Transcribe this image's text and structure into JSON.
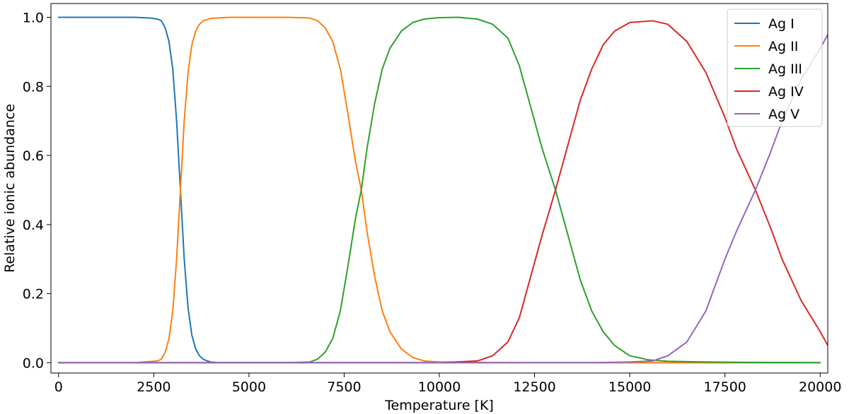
{
  "chart_data": {
    "type": "line",
    "title": "",
    "xlabel": "Temperature [K]",
    "ylabel": "Relative ionic abundance",
    "xlim": [
      -200,
      20200
    ],
    "ylim": [
      -0.03,
      1.04
    ],
    "xticks": [
      0,
      2500,
      5000,
      7500,
      10000,
      12500,
      15000,
      17500,
      20000
    ],
    "xtick_labels": [
      "0",
      "2500",
      "5000",
      "7500",
      "10000",
      "12500",
      "15000",
      "17500",
      "20000"
    ],
    "yticks": [
      0.0,
      0.2,
      0.4,
      0.6,
      0.8,
      1.0
    ],
    "ytick_labels": [
      "0.0",
      "0.2",
      "0.4",
      "0.6",
      "0.8",
      "1.0"
    ],
    "grid": false,
    "legend_position": "top-right",
    "series": [
      {
        "name": "Ag I",
        "color": "#1f77b4",
        "x": [
          0,
          1000,
          2000,
          2400,
          2600,
          2700,
          2800,
          2900,
          3000,
          3100,
          3200,
          3300,
          3400,
          3500,
          3600,
          3700,
          3800,
          3900,
          4000,
          4200,
          5000,
          10000,
          15000,
          20000
        ],
        "y": [
          1.0,
          1.0,
          1.0,
          0.998,
          0.995,
          0.99,
          0.97,
          0.93,
          0.85,
          0.7,
          0.5,
          0.3,
          0.16,
          0.08,
          0.04,
          0.02,
          0.01,
          0.005,
          0.002,
          0.0,
          0.0,
          0.0,
          0.0,
          0.0
        ]
      },
      {
        "name": "Ag II",
        "color": "#ff7f0e",
        "x": [
          0,
          2000,
          2600,
          2700,
          2800,
          2900,
          3000,
          3100,
          3200,
          3300,
          3400,
          3500,
          3600,
          3700,
          3800,
          4000,
          4500,
          5000,
          6000,
          6600,
          6800,
          7000,
          7200,
          7400,
          7600,
          7800,
          7950,
          8100,
          8300,
          8500,
          8700,
          9000,
          9300,
          9600,
          10000,
          12000,
          20000
        ],
        "y": [
          0.0,
          0.0,
          0.005,
          0.01,
          0.03,
          0.07,
          0.15,
          0.3,
          0.5,
          0.7,
          0.84,
          0.92,
          0.96,
          0.98,
          0.99,
          0.997,
          1.0,
          1.0,
          1.0,
          0.998,
          0.99,
          0.97,
          0.93,
          0.85,
          0.72,
          0.58,
          0.5,
          0.38,
          0.25,
          0.15,
          0.09,
          0.04,
          0.015,
          0.005,
          0.002,
          0.0,
          0.0
        ]
      },
      {
        "name": "Ag III",
        "color": "#2ca02c",
        "x": [
          0,
          6000,
          6600,
          6800,
          7000,
          7200,
          7400,
          7600,
          7800,
          7950,
          8100,
          8300,
          8500,
          8700,
          9000,
          9300,
          9600,
          10000,
          10500,
          11000,
          11400,
          11800,
          12100,
          12400,
          12700,
          13050,
          13400,
          13700,
          14000,
          14300,
          14600,
          15000,
          15500,
          16000,
          17000,
          18000,
          20000
        ],
        "y": [
          0.0,
          0.0,
          0.002,
          0.01,
          0.03,
          0.07,
          0.15,
          0.28,
          0.42,
          0.5,
          0.62,
          0.75,
          0.85,
          0.91,
          0.96,
          0.985,
          0.995,
          0.999,
          1.0,
          0.995,
          0.98,
          0.94,
          0.86,
          0.74,
          0.62,
          0.5,
          0.36,
          0.24,
          0.15,
          0.09,
          0.05,
          0.02,
          0.008,
          0.004,
          0.002,
          0.001,
          0.0
        ]
      },
      {
        "name": "Ag IV",
        "color": "#d62728",
        "x": [
          0,
          10000,
          11000,
          11400,
          11800,
          12100,
          12400,
          12700,
          13050,
          13400,
          13700,
          14000,
          14300,
          14600,
          15000,
          15600,
          16000,
          16500,
          17000,
          17500,
          17800,
          18300,
          18700,
          19000,
          19500,
          20000,
          20200
        ],
        "y": [
          0.0,
          0.0,
          0.005,
          0.02,
          0.06,
          0.13,
          0.25,
          0.37,
          0.5,
          0.64,
          0.76,
          0.85,
          0.92,
          0.96,
          0.985,
          0.99,
          0.98,
          0.93,
          0.84,
          0.71,
          0.62,
          0.5,
          0.39,
          0.3,
          0.18,
          0.09,
          0.05
        ]
      },
      {
        "name": "Ag V",
        "color": "#9467bd",
        "x": [
          0,
          14000,
          15000,
          15600,
          16000,
          16500,
          17000,
          17500,
          17800,
          18300,
          18700,
          19000,
          19500,
          20000,
          20200
        ],
        "y": [
          0.0,
          0.0,
          0.002,
          0.005,
          0.02,
          0.06,
          0.15,
          0.3,
          0.38,
          0.5,
          0.61,
          0.7,
          0.82,
          0.91,
          0.95
        ]
      }
    ]
  }
}
